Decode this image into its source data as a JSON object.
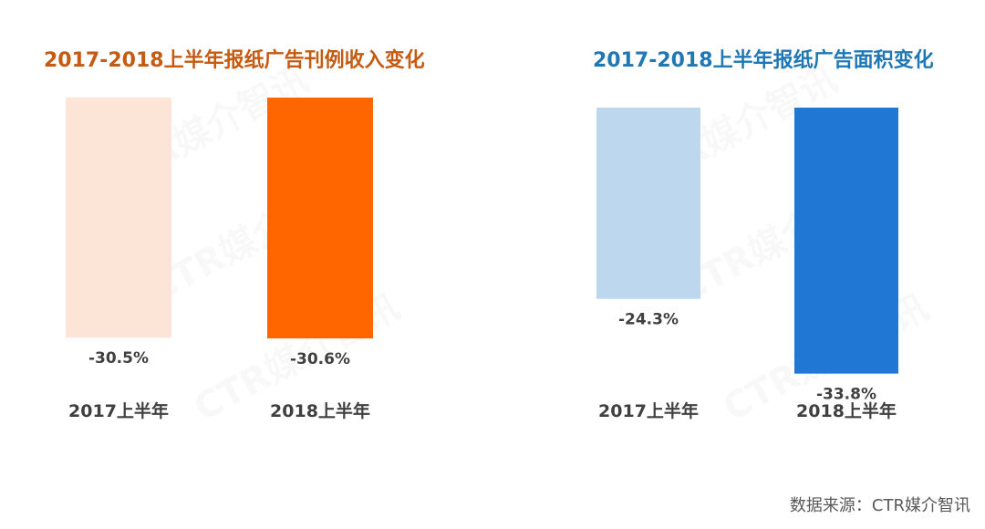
{
  "chart_data": [
    {
      "type": "bar",
      "title": "2017-2018上半年报纸广告刊例收入变化",
      "title_color": "#C55A11",
      "categories": [
        "2017上半年",
        "2018上半年"
      ],
      "values": [
        -30.5,
        -30.6
      ],
      "value_labels": [
        "-30.5%",
        "-30.6%"
      ],
      "colors": [
        "#FCE4D6",
        "#FF6600"
      ],
      "ylim": [
        -35,
        0
      ],
      "grid": false
    },
    {
      "type": "bar",
      "title": "2017-2018上半年报纸广告面积变化",
      "title_color": "#1F78B4",
      "categories": [
        "2017上半年",
        "2018上半年"
      ],
      "values": [
        -24.3,
        -33.8
      ],
      "value_labels": [
        "-24.3%",
        "-33.8%"
      ],
      "colors": [
        "#BDD7EE",
        "#2078D4"
      ],
      "ylim": [
        -35,
        0
      ],
      "grid": false
    }
  ],
  "source": "数据来源：CTR媒介智讯",
  "watermark": "CTR媒介智讯"
}
